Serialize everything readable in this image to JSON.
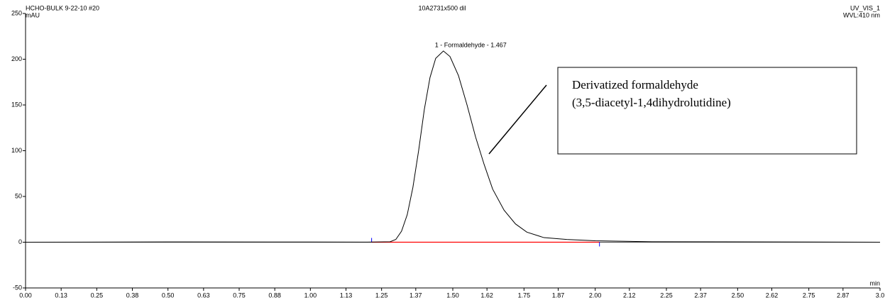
{
  "chart_data": {
    "type": "line",
    "sample": "HCHO-BULK 9-22-10 #20",
    "dilution": "10A2731x500 dil",
    "channel": "UV_VIS_1",
    "wavelength": "WVL:410 nm",
    "ylabel": "mAU",
    "xlabel": "min",
    "peak_label": "1 - Formaldehyde - 1.467",
    "peak_time": 1.467,
    "annotation": [
      "Derivatized formaldehyde",
      "(3,5-diacetyl-1,4dihydrolutidine)"
    ],
    "color": "#000000",
    "x": [
      0,
      0.5,
      1.0,
      1.2,
      1.28,
      1.3,
      1.32,
      1.34,
      1.36,
      1.38,
      1.4,
      1.42,
      1.44,
      1.467,
      1.49,
      1.52,
      1.55,
      1.58,
      1.61,
      1.64,
      1.68,
      1.72,
      1.76,
      1.82,
      1.9,
      2.0,
      2.2,
      3.0
    ],
    "values": [
      0,
      0.3,
      0.2,
      0.1,
      0.5,
      3,
      12,
      30,
      60,
      100,
      145,
      180,
      201,
      209,
      203,
      182,
      150,
      115,
      85,
      58,
      35,
      20,
      11,
      5,
      3,
      1.5,
      0.5,
      0
    ],
    "baseline": {
      "x": [
        1.215,
        2.015
      ],
      "values": [
        0,
        0
      ],
      "color": "#ff0000",
      "marker_color": "#0000ff"
    },
    "xlim": [
      0,
      3
    ],
    "ylim": [
      -50,
      250
    ],
    "xticks": [
      {
        "value": 0,
        "label": "0.00"
      },
      {
        "value": 0.125,
        "label": "0.13"
      },
      {
        "value": 0.25,
        "label": "0.25"
      },
      {
        "value": 0.375,
        "label": "0.38"
      },
      {
        "value": 0.5,
        "label": "0.50"
      },
      {
        "value": 0.625,
        "label": "0.63"
      },
      {
        "value": 0.75,
        "label": "0.75"
      },
      {
        "value": 0.875,
        "label": "0.88"
      },
      {
        "value": 1,
        "label": "1.00"
      },
      {
        "value": 1.125,
        "label": "1.13"
      },
      {
        "value": 1.25,
        "label": "1.25"
      },
      {
        "value": 1.37,
        "label": "1.37"
      },
      {
        "value": 1.5,
        "label": "1.50"
      },
      {
        "value": 1.62,
        "label": "1.62"
      },
      {
        "value": 1.75,
        "label": "1.75"
      },
      {
        "value": 1.87,
        "label": "1.87"
      },
      {
        "value": 2,
        "label": "2.00"
      },
      {
        "value": 2.12,
        "label": "2.12"
      },
      {
        "value": 2.25,
        "label": "2.25"
      },
      {
        "value": 2.37,
        "label": "2.37"
      },
      {
        "value": 2.5,
        "label": "2.50"
      },
      {
        "value": 2.62,
        "label": "2.62"
      },
      {
        "value": 2.75,
        "label": "2.75"
      },
      {
        "value": 2.87,
        "label": "2.87"
      },
      {
        "value": 3,
        "label": "3.0"
      }
    ],
    "yticks": [
      -50,
      0,
      50,
      100,
      150,
      200,
      250
    ]
  }
}
